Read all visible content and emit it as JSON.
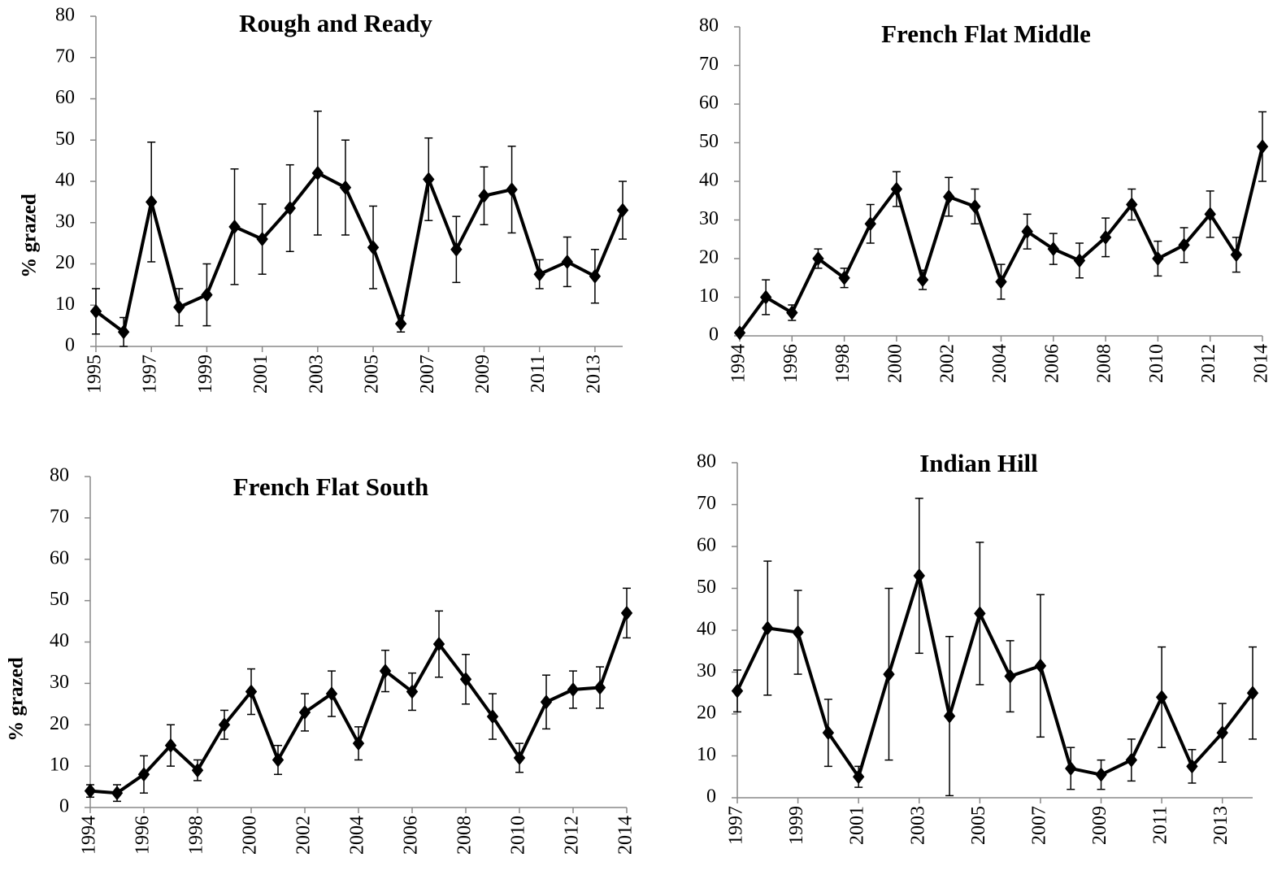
{
  "chart_data": [
    {
      "type": "line",
      "title": "Rough and Ready",
      "y_label": "% grazed",
      "color": "#000000",
      "x": [
        1995,
        1996,
        1997,
        1998,
        1999,
        2000,
        2001,
        2002,
        2003,
        2004,
        2005,
        2006,
        2007,
        2008,
        2009,
        2010,
        2011,
        2012,
        2013,
        2014
      ],
      "values": [
        8.5,
        3.5,
        35,
        9.5,
        12.5,
        29,
        26,
        33.5,
        42,
        38.5,
        24,
        5.5,
        40.5,
        23.5,
        36.5,
        38,
        17.5,
        20.5,
        17,
        33
      ],
      "errors": [
        5.5,
        3.5,
        14.5,
        4.5,
        7.5,
        14,
        8.5,
        10.5,
        15,
        11.5,
        10,
        2,
        10,
        8,
        7,
        10.5,
        3.5,
        6,
        6.5,
        7
      ],
      "xlim": [
        1995,
        2014
      ],
      "xticks": [
        1995,
        1997,
        1999,
        2001,
        2003,
        2005,
        2007,
        2009,
        2011,
        2013
      ],
      "ylim": [
        0,
        80
      ],
      "yticks": [
        0,
        10,
        20,
        30,
        40,
        50,
        60,
        70,
        80
      ]
    },
    {
      "type": "line",
      "title": "French Flat Middle",
      "color": "#000000",
      "x": [
        1994,
        1995,
        1996,
        1997,
        1998,
        1999,
        2000,
        2001,
        2002,
        2003,
        2004,
        2005,
        2006,
        2007,
        2008,
        2009,
        2010,
        2011,
        2012,
        2013,
        2014
      ],
      "values": [
        0.8,
        10,
        6,
        20,
        15,
        29,
        38,
        14.5,
        36,
        33.5,
        14,
        27,
        22.5,
        19.5,
        25.5,
        34,
        20,
        23.5,
        31.5,
        21,
        49
      ],
      "errors": [
        0,
        4.5,
        2,
        2.5,
        2.5,
        5,
        4.5,
        2.5,
        5,
        4.5,
        4.5,
        4.5,
        4,
        4.5,
        5,
        4,
        4.5,
        4.5,
        6,
        4.5,
        9
      ],
      "xlim": [
        1994,
        2014
      ],
      "xticks": [
        1994,
        1996,
        1998,
        2000,
        2002,
        2004,
        2006,
        2008,
        2010,
        2012,
        2014
      ],
      "ylim": [
        0,
        80
      ],
      "yticks": [
        0,
        10,
        20,
        30,
        40,
        50,
        60,
        70,
        80
      ]
    },
    {
      "type": "line",
      "title": "French Flat South",
      "y_label": "% grazed",
      "color": "#000000",
      "x": [
        1994,
        1995,
        1996,
        1997,
        1998,
        1999,
        2000,
        2001,
        2002,
        2003,
        2004,
        2005,
        2006,
        2007,
        2008,
        2009,
        2010,
        2011,
        2012,
        2013,
        2014
      ],
      "values": [
        4,
        3.5,
        8,
        15,
        9,
        20,
        28,
        11.5,
        23,
        27.5,
        15.5,
        33,
        28,
        39.5,
        31,
        22,
        12,
        25.5,
        28.5,
        29,
        47
      ],
      "errors": [
        1.5,
        2,
        4.5,
        5,
        2.5,
        3.5,
        5.5,
        3.5,
        4.5,
        5.5,
        4,
        5,
        4.5,
        8,
        6,
        5.5,
        3.5,
        6.5,
        4.5,
        5,
        6
      ],
      "xlim": [
        1994,
        2014
      ],
      "xticks": [
        1994,
        1996,
        1998,
        2000,
        2002,
        2004,
        2006,
        2008,
        2010,
        2012,
        2014
      ],
      "ylim": [
        0,
        80
      ],
      "yticks": [
        0,
        10,
        20,
        30,
        40,
        50,
        60,
        70,
        80
      ]
    },
    {
      "type": "line",
      "title": "Indian Hill",
      "color": "#000000",
      "x": [
        1997,
        1998,
        1999,
        2000,
        2001,
        2002,
        2003,
        2004,
        2005,
        2006,
        2007,
        2008,
        2009,
        2010,
        2011,
        2012,
        2013,
        2014
      ],
      "values": [
        25.5,
        40.5,
        39.5,
        15.5,
        5,
        29.5,
        53,
        19.5,
        44,
        29,
        31.5,
        7,
        5.5,
        9,
        24,
        7.5,
        15.5,
        25
      ],
      "errors": [
        5,
        16,
        10,
        8,
        2.5,
        20.5,
        18.5,
        19,
        17,
        8.5,
        17,
        5,
        3.5,
        5,
        12,
        4,
        7,
        11
      ],
      "xlim": [
        1997,
        2014
      ],
      "xticks": [
        1997,
        1999,
        2001,
        2003,
        2005,
        2007,
        2009,
        2011,
        2013
      ],
      "ylim": [
        0,
        80
      ],
      "yticks": [
        0,
        10,
        20,
        30,
        40,
        50,
        60,
        70,
        80
      ]
    }
  ]
}
